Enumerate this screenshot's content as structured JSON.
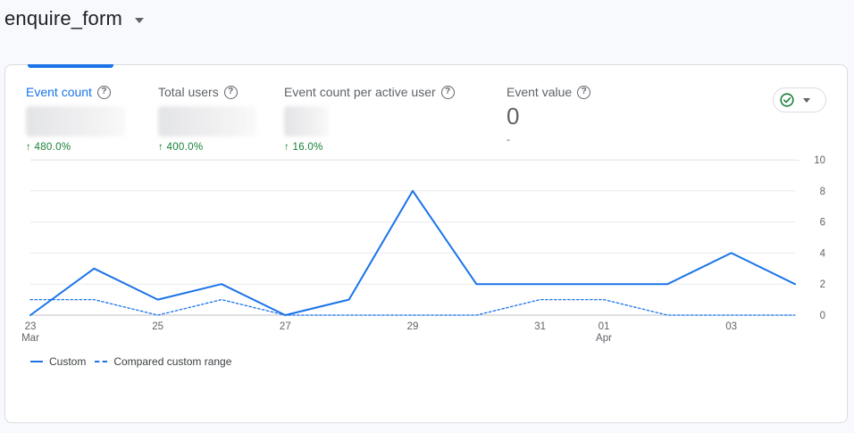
{
  "header": {
    "title": "enquire_form"
  },
  "metrics": [
    {
      "label": "Event count",
      "change": "↑ 480.0%"
    },
    {
      "label": "Total users",
      "change": "↑ 400.0%"
    },
    {
      "label": "Event count per active user",
      "change": "↑ 16.0%"
    },
    {
      "label": "Event value",
      "value": "0",
      "sub": "-"
    }
  ],
  "help_glyph": "?",
  "status_icon": "check-circle-icon",
  "chart_data": {
    "type": "line",
    "x": [
      "23 Mar",
      "24 Mar",
      "25 Mar",
      "26 Mar",
      "27 Mar",
      "28 Mar",
      "29 Mar",
      "30 Mar",
      "31 Mar",
      "01 Apr",
      "02 Apr",
      "03 Apr",
      "04 Apr"
    ],
    "x_tick_labels": [
      {
        "day": "23",
        "month": "Mar"
      },
      {
        "day": "25",
        "month": ""
      },
      {
        "day": "27",
        "month": ""
      },
      {
        "day": "29",
        "month": ""
      },
      {
        "day": "31",
        "month": ""
      },
      {
        "day": "01",
        "month": "Apr"
      },
      {
        "day": "03",
        "month": ""
      }
    ],
    "x_tick_dates": [
      "23 Mar",
      "25 Mar",
      "27 Mar",
      "29 Mar",
      "31 Mar",
      "01 Apr",
      "03 Apr"
    ],
    "y_ticks": [
      0,
      2,
      4,
      6,
      8,
      10
    ],
    "ylim": [
      0,
      10
    ],
    "y_axis_side": "right",
    "series": [
      {
        "name": "Custom",
        "style": "solid",
        "color": "#1a73e8",
        "values": [
          0,
          3,
          1,
          2,
          0,
          1,
          8,
          2,
          2,
          2,
          2,
          4,
          2
        ]
      },
      {
        "name": "Compared custom range",
        "style": "dashed",
        "color": "#1a73e8",
        "values": [
          1,
          1,
          0,
          1,
          0,
          0,
          0,
          0,
          1,
          1,
          0,
          0,
          0
        ]
      }
    ],
    "grid": true,
    "legend": "bottom-left"
  }
}
